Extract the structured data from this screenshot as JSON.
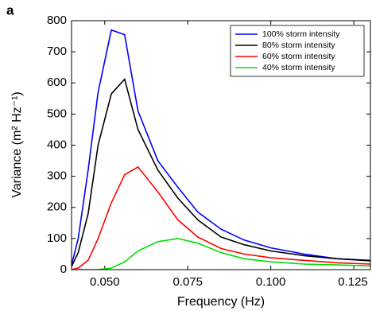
{
  "chart_data": {
    "type": "line",
    "panel_label": "a",
    "x_label": "Frequency (Hz)",
    "y_label": "Variance (m² Hz⁻¹)",
    "x": [
      0.04,
      0.042,
      0.045,
      0.048,
      0.052,
      0.056,
      0.06,
      0.066,
      0.072,
      0.078,
      0.085,
      0.092,
      0.1,
      0.11,
      0.12,
      0.13
    ],
    "series": [
      {
        "name": "100% storm intensity",
        "color": "#0000ff",
        "values": [
          15,
          100,
          320,
          570,
          770,
          755,
          510,
          350,
          265,
          185,
          130,
          95,
          70,
          50,
          35,
          30
        ]
      },
      {
        "name": "80% storm intensity",
        "color": "#000000",
        "values": [
          10,
          55,
          180,
          400,
          565,
          612,
          450,
          320,
          230,
          160,
          105,
          80,
          60,
          45,
          35,
          28
        ]
      },
      {
        "name": "60% storm intensity",
        "color": "#ff0000",
        "values": [
          0,
          5,
          30,
          100,
          215,
          305,
          330,
          250,
          160,
          105,
          68,
          50,
          38,
          30,
          22,
          18
        ]
      },
      {
        "name": "40% storm intensity",
        "color": "#00dd00",
        "values": [
          0,
          0,
          0,
          0,
          5,
          25,
          60,
          90,
          100,
          85,
          55,
          35,
          25,
          18,
          15,
          12
        ]
      }
    ],
    "xlim": [
      0.04,
      0.13
    ],
    "xticks": [
      {
        "value": 0.05,
        "label": "0.050"
      },
      0.075,
      {
        "value": 0.1,
        "label": "0.100"
      },
      0.125
    ],
    "ylim": [
      0,
      800
    ],
    "yticks": [
      0,
      100,
      200,
      300,
      400,
      500,
      600,
      700,
      800
    ],
    "legend": "upper right"
  }
}
